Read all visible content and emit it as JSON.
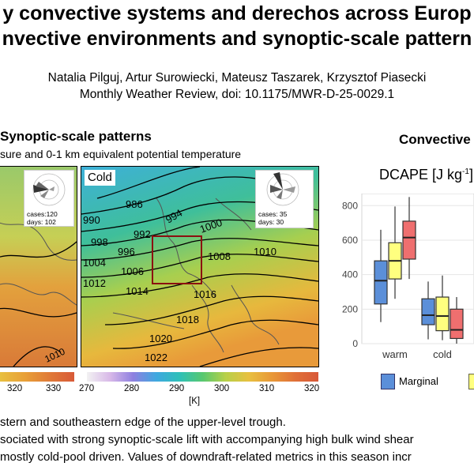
{
  "poster": {
    "title_line1": "y convective systems and derechos across Europ",
    "title_line2": "nvective environments and synoptic-scale pattern",
    "authors": "Natalia Pilguj, Artur Surowiecki, Mateusz Taszarek, Krzysztof Piasecki",
    "citation": "Monthly Weather Review, doi: 10.1175/MWR-D-25-0029.1"
  },
  "synoptic": {
    "heading": "Synoptic-scale patterns",
    "subheading": "sure and 0-1 km equivalent potential temperature",
    "left_panel": {
      "cases": "cases:120",
      "days": "days: 102",
      "contour_labels": [
        "1010"
      ]
    },
    "cold_panel": {
      "label": "Cold",
      "cases": "cases: 35",
      "days": "days: 30",
      "contour_labels": [
        "986",
        "990",
        "992",
        "994",
        "996",
        "998",
        "1000",
        "1004",
        "1006",
        "1008",
        "1010",
        "1012",
        "1014",
        "1016",
        "1018",
        "1020",
        "1022"
      ]
    },
    "colorbar_left_ticks": [
      "320",
      "330"
    ],
    "colorbar_ticks": [
      "270",
      "280",
      "290",
      "300",
      "310",
      "320"
    ],
    "colorbar_unit": "[K]"
  },
  "convective": {
    "heading": "Convective",
    "chart_title": "DCAPE [J kg",
    "chart_title_sup": "-1",
    "chart_title_close": "]",
    "y_ticks": [
      "800",
      "600",
      "400",
      "200",
      "0"
    ],
    "x_categories": [
      "warm",
      "cold"
    ],
    "legend": [
      "Marginal"
    ]
  },
  "chart_data": {
    "type": "box",
    "title": "DCAPE [J kg-1]",
    "categories": [
      "warm",
      "cold"
    ],
    "ylim": [
      0,
      870
    ],
    "series": [
      {
        "name": "Marginal",
        "color": "#5b8fd9",
        "boxes": [
          {
            "category": "warm",
            "whisker_low": 125,
            "q1": 230,
            "median": 365,
            "q3": 480,
            "whisker_high": 660
          },
          {
            "category": "cold",
            "whisker_low": 25,
            "q1": 110,
            "median": 165,
            "q3": 260,
            "whisker_high": 360
          }
        ]
      },
      {
        "name": "",
        "color": "#ffff7f",
        "boxes": [
          {
            "category": "warm",
            "whisker_low": 260,
            "q1": 375,
            "median": 480,
            "q3": 585,
            "whisker_high": 795
          },
          {
            "category": "cold",
            "whisker_low": 20,
            "q1": 75,
            "median": 160,
            "q3": 270,
            "whisker_high": 395
          }
        ]
      },
      {
        "name": "",
        "color": "#ef6f6f",
        "boxes": [
          {
            "category": "warm",
            "whisker_low": 375,
            "q1": 490,
            "median": 615,
            "q3": 710,
            "whisker_high": 850
          },
          {
            "category": "cold",
            "whisker_low": 0,
            "q1": 30,
            "median": 80,
            "q3": 200,
            "whisker_high": 270
          }
        ]
      }
    ]
  },
  "text": {
    "line1": "stern and southeastern edge of the upper-level trough.",
    "line2": "sociated with strong synoptic-scale lift with accompanying high bulk wind shear",
    "line3": "mostly cold-pool driven. Values of downdraft-related metrics in this season incr"
  }
}
